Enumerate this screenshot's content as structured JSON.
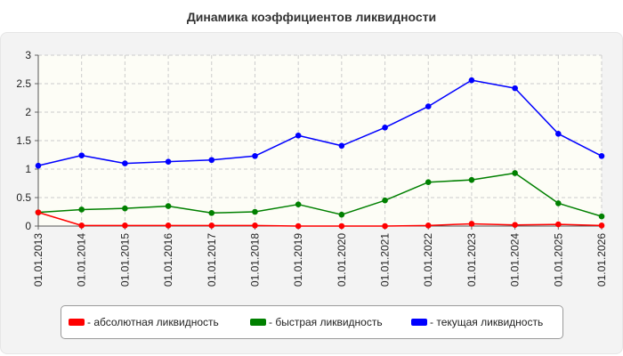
{
  "title": "Динамика коэффициентов ликвидности",
  "colors": {
    "absolute": "#ff0000",
    "quick": "#008000",
    "current": "#0000ff",
    "background": "#f3f3f3",
    "plot_area": "#fdfdf6",
    "grid": "#cccccc"
  },
  "legend": [
    {
      "label": "- абсолютная ликвидность",
      "color": "#ff0000"
    },
    {
      "label": "- быстрая ликвидность",
      "color": "#008000"
    },
    {
      "label": "- текущая ликвидность",
      "color": "#0000ff"
    }
  ],
  "chart_data": {
    "type": "line",
    "title": "Динамика коэффициентов ликвидности",
    "xlabel": "",
    "ylabel": "",
    "categories": [
      "01.01.2013",
      "01.01.2014",
      "01.01.2015",
      "01.01.2016",
      "01.01.2017",
      "01.01.2018",
      "01.01.2019",
      "01.01.2020",
      "01.01.2021",
      "01.01.2022",
      "01.01.2023",
      "01.01.2024",
      "01.01.2025",
      "01.01.2026"
    ],
    "ylim": [
      0,
      3
    ],
    "yticks": [
      "0",
      "0.5",
      "1",
      "1.5",
      "2",
      "2.5",
      "3"
    ],
    "grid": true,
    "legend_position": "bottom",
    "series": [
      {
        "name": "- абсолютная ликвидность",
        "color": "#ff0000",
        "values": [
          0.24,
          0.01,
          0.01,
          0.01,
          0.01,
          0.01,
          0.0,
          0.0,
          0.0,
          0.01,
          0.04,
          0.02,
          0.03,
          0.01
        ]
      },
      {
        "name": "- быстрая ликвидность",
        "color": "#008000",
        "values": [
          0.24,
          0.29,
          0.31,
          0.35,
          0.23,
          0.25,
          0.38,
          0.2,
          0.45,
          0.77,
          0.81,
          0.93,
          0.4,
          0.17
        ]
      },
      {
        "name": "- текущая ликвидность",
        "color": "#0000ff",
        "values": [
          1.06,
          1.24,
          1.1,
          1.13,
          1.16,
          1.23,
          1.59,
          1.41,
          1.73,
          2.1,
          2.56,
          2.42,
          1.62,
          1.23
        ]
      }
    ]
  }
}
